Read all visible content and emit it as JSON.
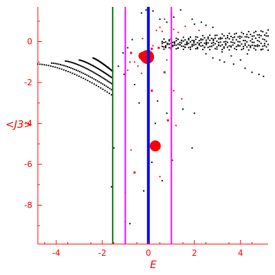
{
  "chart_data": {
    "type": "scatter",
    "xlabel": "E",
    "ylabel": "<J3>",
    "xlim": [
      -4.8,
      5.2
    ],
    "ylim": [
      -9.9,
      1.7
    ],
    "x_ticks": [
      -4,
      -2,
      0,
      2,
      4
    ],
    "y_ticks": [
      0,
      -2,
      -4,
      -6,
      -8
    ],
    "x_tick_labels": [
      "-4",
      "-2",
      "0",
      "2",
      "4"
    ],
    "y_tick_labels": [
      "0",
      "-2",
      "-4",
      "-6",
      "-8"
    ],
    "vertical_lines": [
      {
        "x": -1.55,
        "color": "#008000",
        "width": 2
      },
      {
        "x": -1.0,
        "color": "#ff00ff",
        "width": 2
      },
      {
        "x": 0.0,
        "color": "#0000ff",
        "width": 4
      },
      {
        "x": 1.0,
        "color": "#ff00ff",
        "width": 2
      }
    ],
    "colors": {
      "axis": "#ff0000",
      "black_points": "#000000",
      "red_points": "#ff0000"
    },
    "bands": [
      {
        "x": [
          -4.8,
          -1.6
        ],
        "y": [
          -1.1,
          -2.6
        ],
        "curv": 1.6
      },
      {
        "x": [
          -4.2,
          -1.6
        ],
        "y": [
          -1.05,
          -2.35
        ],
        "curv": 1.5
      },
      {
        "x": [
          -3.6,
          -1.6
        ],
        "y": [
          -0.95,
          -2.05
        ],
        "curv": 1.4
      },
      {
        "x": [
          -3.0,
          -1.6
        ],
        "y": [
          -0.9,
          -1.75
        ],
        "curv": 1.3
      },
      {
        "x": [
          -2.4,
          -1.55
        ],
        "y": [
          -0.8,
          -1.45
        ],
        "curv": 1.2
      }
    ],
    "upper_bands": [
      {
        "x": [
          0.6,
          5.2
        ],
        "y": [
          0.0,
          0.45
        ]
      },
      {
        "x": [
          0.6,
          5.2
        ],
        "y": [
          -0.1,
          0.2
        ]
      },
      {
        "x": [
          0.6,
          5.2
        ],
        "y": [
          -0.2,
          -0.1
        ]
      },
      {
        "x": [
          0.6,
          5.2
        ],
        "y": [
          -0.25,
          -0.3
        ]
      }
    ],
    "black_scatter": [
      [
        1.4,
        1.55
      ],
      [
        1.9,
        1.1
      ],
      [
        2.0,
        0.85
      ],
      [
        2.3,
        0.95
      ],
      [
        2.5,
        0.8
      ],
      [
        2.8,
        0.7
      ],
      [
        2.5,
        -0.6
      ],
      [
        2.8,
        -0.8
      ],
      [
        3.1,
        -0.9
      ],
      [
        3.3,
        -1.0
      ],
      [
        3.7,
        -1.1
      ],
      [
        4.2,
        -1.3
      ],
      [
        4.5,
        -1.5
      ],
      [
        4.8,
        -1.6
      ],
      [
        5.0,
        -1.7
      ],
      [
        3.2,
        -0.5
      ],
      [
        3.6,
        -0.7
      ],
      [
        4.0,
        -0.9
      ],
      [
        4.9,
        -0.4
      ],
      [
        4.6,
        -0.2
      ],
      [
        4.3,
        -0.6
      ],
      [
        -0.3,
        1.4
      ],
      [
        -0.1,
        1.55
      ],
      [
        0.2,
        1.5
      ],
      [
        0.5,
        1.1
      ],
      [
        0.8,
        0.95
      ],
      [
        1.1,
        1.2
      ],
      [
        -0.7,
        0.1
      ],
      [
        -0.9,
        -0.3
      ],
      [
        -1.1,
        -0.55
      ],
      [
        -1.3,
        -1.2
      ],
      [
        -1.05,
        -1.6
      ],
      [
        -0.6,
        -2.1
      ],
      [
        0.4,
        -2.9
      ],
      [
        0.8,
        -3.5
      ],
      [
        1.5,
        -3.3
      ],
      [
        2.0,
        -3.5
      ],
      [
        1.9,
        -5.2
      ],
      [
        0.3,
        -4.0
      ],
      [
        0.15,
        -5.9
      ],
      [
        0.6,
        -6.8
      ],
      [
        -0.2,
        -7.3
      ],
      [
        -1.0,
        -7.4
      ],
      [
        -1.0,
        -8.8
      ],
      [
        -0.8,
        -8.9
      ],
      [
        -1.5,
        -5.2
      ],
      [
        -1.6,
        -7.1
      ],
      [
        -0.4,
        -3.0
      ]
    ],
    "red_points": [
      {
        "x": -0.25,
        "y": -0.7,
        "s": 6
      },
      {
        "x": -0.05,
        "y": -0.75,
        "s": 10
      },
      {
        "x": 0.3,
        "y": -5.1,
        "s": 8
      },
      {
        "x": -0.75,
        "y": -0.55,
        "s": 3
      },
      {
        "x": 0.15,
        "y": -0.35,
        "s": 3
      },
      {
        "x": 0.45,
        "y": -0.3,
        "s": 3
      },
      {
        "x": 0.2,
        "y": -0.2,
        "s": 2
      },
      {
        "x": 0.65,
        "y": -0.25,
        "s": 2
      },
      {
        "x": 0.7,
        "y": 1.1,
        "s": 2
      },
      {
        "x": 0.5,
        "y": 0.7,
        "s": 2
      },
      {
        "x": 0.6,
        "y": 0.5,
        "s": 2
      },
      {
        "x": 0.35,
        "y": 0.55,
        "s": 2
      },
      {
        "x": 1.1,
        "y": 0.6,
        "s": 2
      },
      {
        "x": 1.3,
        "y": 0.45,
        "s": 2
      },
      {
        "x": 1.6,
        "y": 0.75,
        "s": 2
      },
      {
        "x": 2.2,
        "y": 0.55,
        "s": 2
      },
      {
        "x": -0.8,
        "y": -1.0,
        "s": 2
      },
      {
        "x": -0.9,
        "y": -1.4,
        "s": 2
      },
      {
        "x": -0.6,
        "y": -1.0,
        "s": 2
      },
      {
        "x": -0.45,
        "y": -1.2,
        "s": 2
      },
      {
        "x": 0.7,
        "y": -1.5,
        "s": 3
      },
      {
        "x": 0.15,
        "y": -2.4,
        "s": 3
      },
      {
        "x": 0.85,
        "y": -3.85,
        "s": 3
      },
      {
        "x": 1.1,
        "y": -2.4,
        "s": 2
      },
      {
        "x": 1.45,
        "y": -2.8,
        "s": 2
      },
      {
        "x": -0.6,
        "y": -6.4,
        "s": 3
      },
      {
        "x": 0.5,
        "y": -6.6,
        "s": 2
      },
      {
        "x": 1.05,
        "y": -5.8,
        "s": 2
      },
      {
        "x": 1.2,
        "y": -4.1,
        "s": 2
      },
      {
        "x": -0.75,
        "y": -5.3,
        "s": 2
      },
      {
        "x": -0.25,
        "y": 0.15,
        "s": 2
      },
      {
        "x": 0.8,
        "y": -0.9,
        "s": 2
      },
      {
        "x": -0.3,
        "y": -1.55,
        "s": 2
      },
      {
        "x": 0.0,
        "y": -4.6,
        "s": 2
      }
    ]
  }
}
